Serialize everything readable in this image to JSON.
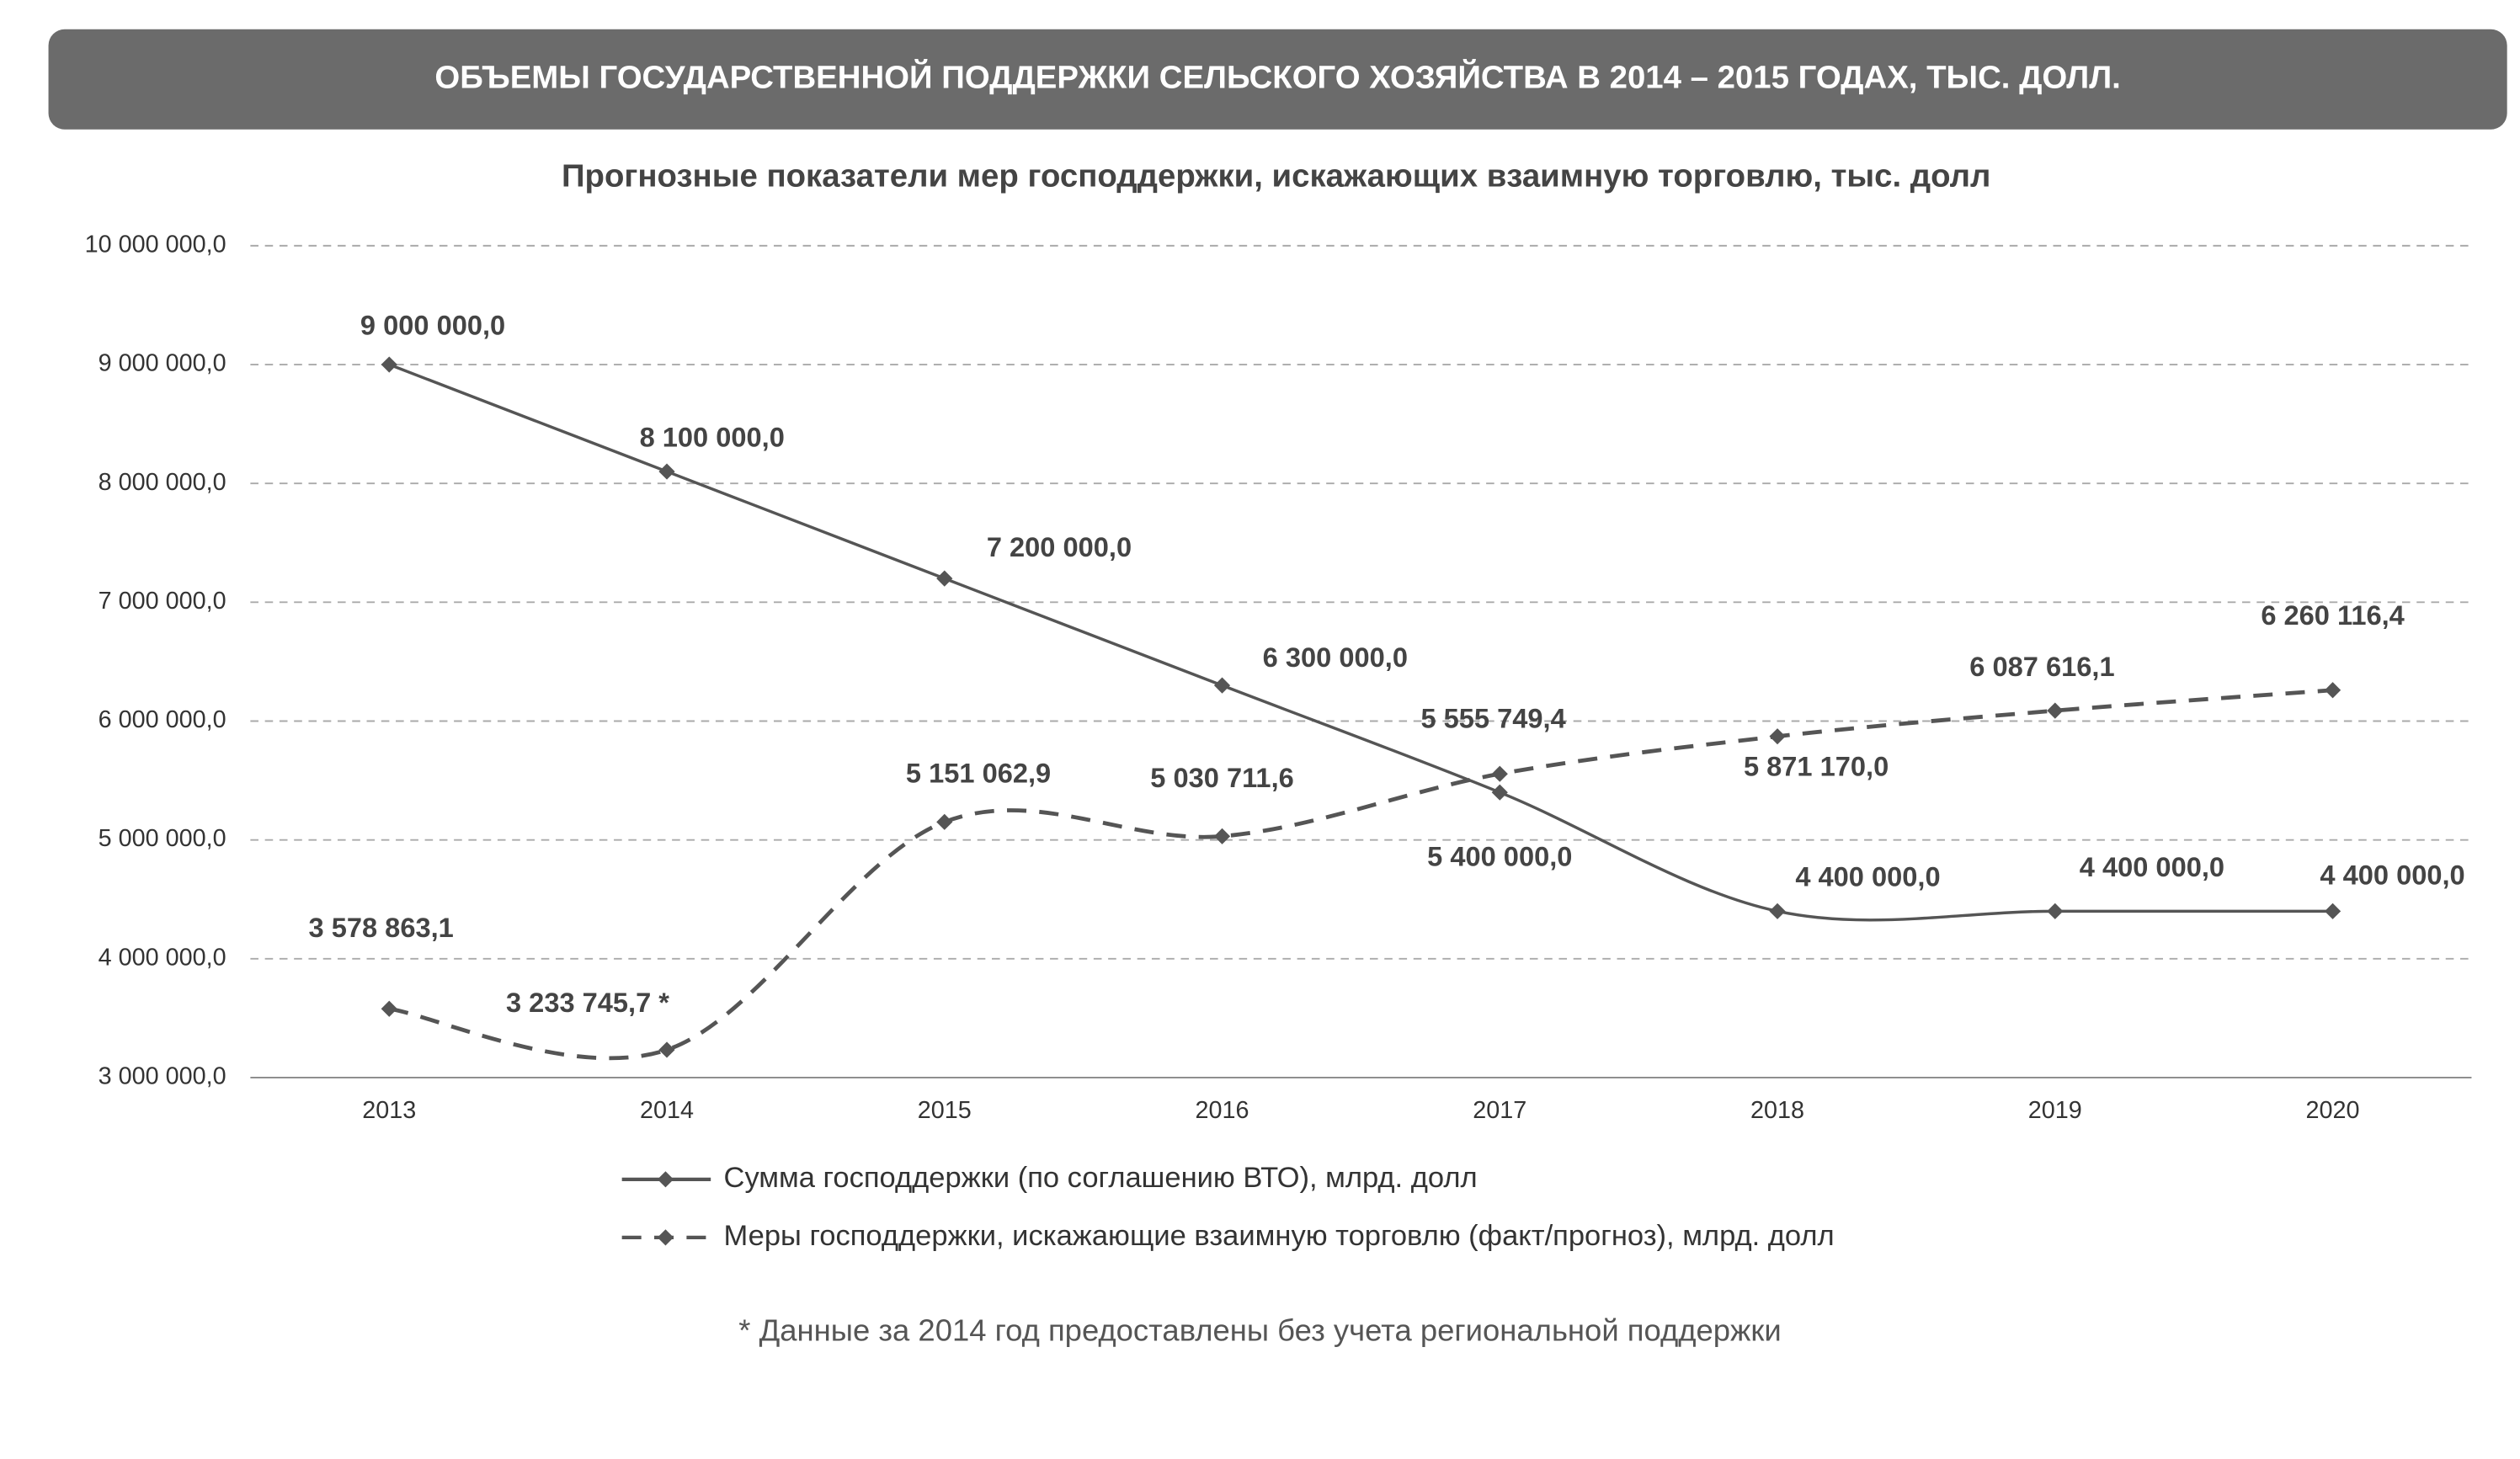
{
  "chart_data": {
    "type": "line",
    "title": "ОБЪЕМЫ ГОСУДАРСТВЕННОЙ ПОДДЕРЖКИ СЕЛЬСКОГО ХОЗЯЙСТВА В 2014 – 2015 ГОДАХ, ТЫС. ДОЛЛ.",
    "subtitle": "Прогнозные показатели мер господдержки, искажающих взаимную торговлю, тыс. долл",
    "footnote": "* Данные за 2014 год  предоставлены без учета региональной поддержки",
    "categories": [
      "2013",
      "2014",
      "2015",
      "2016",
      "2017",
      "2018",
      "2019",
      "2020"
    ],
    "series": [
      {
        "name": "Сумма господдержки (по соглашению ВТО), млрд. долл",
        "color": "#555555",
        "dashed": false,
        "values": [
          9000000.0,
          8100000.0,
          7200000.0,
          6300000.0,
          5400000.0,
          4400000.0,
          4400000.0,
          4400000.0
        ],
        "value_labels": [
          "9 000 000,0",
          "8 100 000,0",
          "7 200 000,0",
          "6 300 000,0",
          "5 400 000,0",
          "4 400 000,0",
          "4 400 000,0",
          "4 400 000,0"
        ]
      },
      {
        "name": "Меры господдержки, искажающие взаимную торговлю (факт/прогноз), млрд. долл",
        "color": "#555555",
        "dashed": true,
        "values": [
          3578863.1,
          3233745.7,
          5151062.9,
          5030711.6,
          5555749.4,
          5871170.0,
          6087616.1,
          6260116.4
        ],
        "value_labels": [
          "3 578 863,1",
          "3 233 745,7 *",
          "5 151 062,9",
          "5 030 711,6",
          "5 555 749,4",
          "5 871 170,0",
          "6 087 616,1",
          "6 260 116,4"
        ]
      }
    ],
    "ylim": [
      3000000,
      10000000
    ],
    "yticks": [
      {
        "value": 3000000,
        "label": "3 000 000,0"
      },
      {
        "value": 4000000,
        "label": "4 000 000,0"
      },
      {
        "value": 5000000,
        "label": "5 000 000,0"
      },
      {
        "value": 6000000,
        "label": "6 000 000,0"
      },
      {
        "value": 7000000,
        "label": "7 000 000,0"
      },
      {
        "value": 8000000,
        "label": "8 000 000,0"
      },
      {
        "value": 9000000,
        "label": "9 000 000,0"
      },
      {
        "value": 10000000,
        "label": "10 000 000,0"
      }
    ],
    "grid": true,
    "smooth": true
  }
}
